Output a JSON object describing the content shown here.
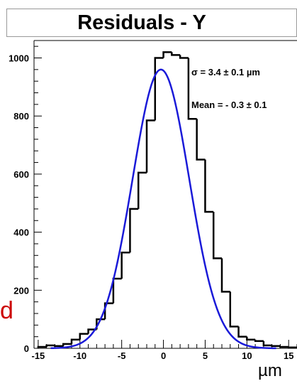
{
  "chart_data": {
    "type": "histogram",
    "title": "Residuals - Y",
    "xlabel": "µm",
    "ylabel": "",
    "xlim": [
      -15.5,
      16
    ],
    "ylim": [
      0,
      1060
    ],
    "x_ticks": [
      "-15",
      "-10",
      "-5",
      "0",
      "5",
      "10",
      "15"
    ],
    "y_ticks": [
      "0",
      "200",
      "400",
      "600",
      "800",
      "1000"
    ],
    "grid": false,
    "bin_edges": [
      -15,
      -14,
      -13,
      -12,
      -11,
      -10,
      -9,
      -8,
      -7,
      -6,
      -5,
      -4,
      -3,
      -2,
      -1,
      0,
      1,
      2,
      3,
      4,
      5,
      6,
      7,
      8,
      9,
      10,
      11,
      12,
      13,
      14,
      15,
      16
    ],
    "series": [
      {
        "kind": "histogram",
        "color": "#000000",
        "values": [
          5,
          10,
          8,
          15,
          30,
          50,
          65,
          100,
          155,
          240,
          330,
          480,
          605,
          785,
          1000,
          1020,
          1010,
          1000,
          790,
          650,
          470,
          310,
          195,
          75,
          40,
          30,
          25,
          10,
          8,
          5,
          3
        ]
      },
      {
        "kind": "gaussian-fit",
        "color": "#1a1ad8",
        "amplitude": 960,
        "mean": -0.3,
        "sigma": 3.4
      }
    ],
    "annotations": [
      "σ = 3.4 ± 0.1 µm",
      "Mean = - 0.3 ± 0.1"
    ]
  },
  "side_fragment": "d"
}
